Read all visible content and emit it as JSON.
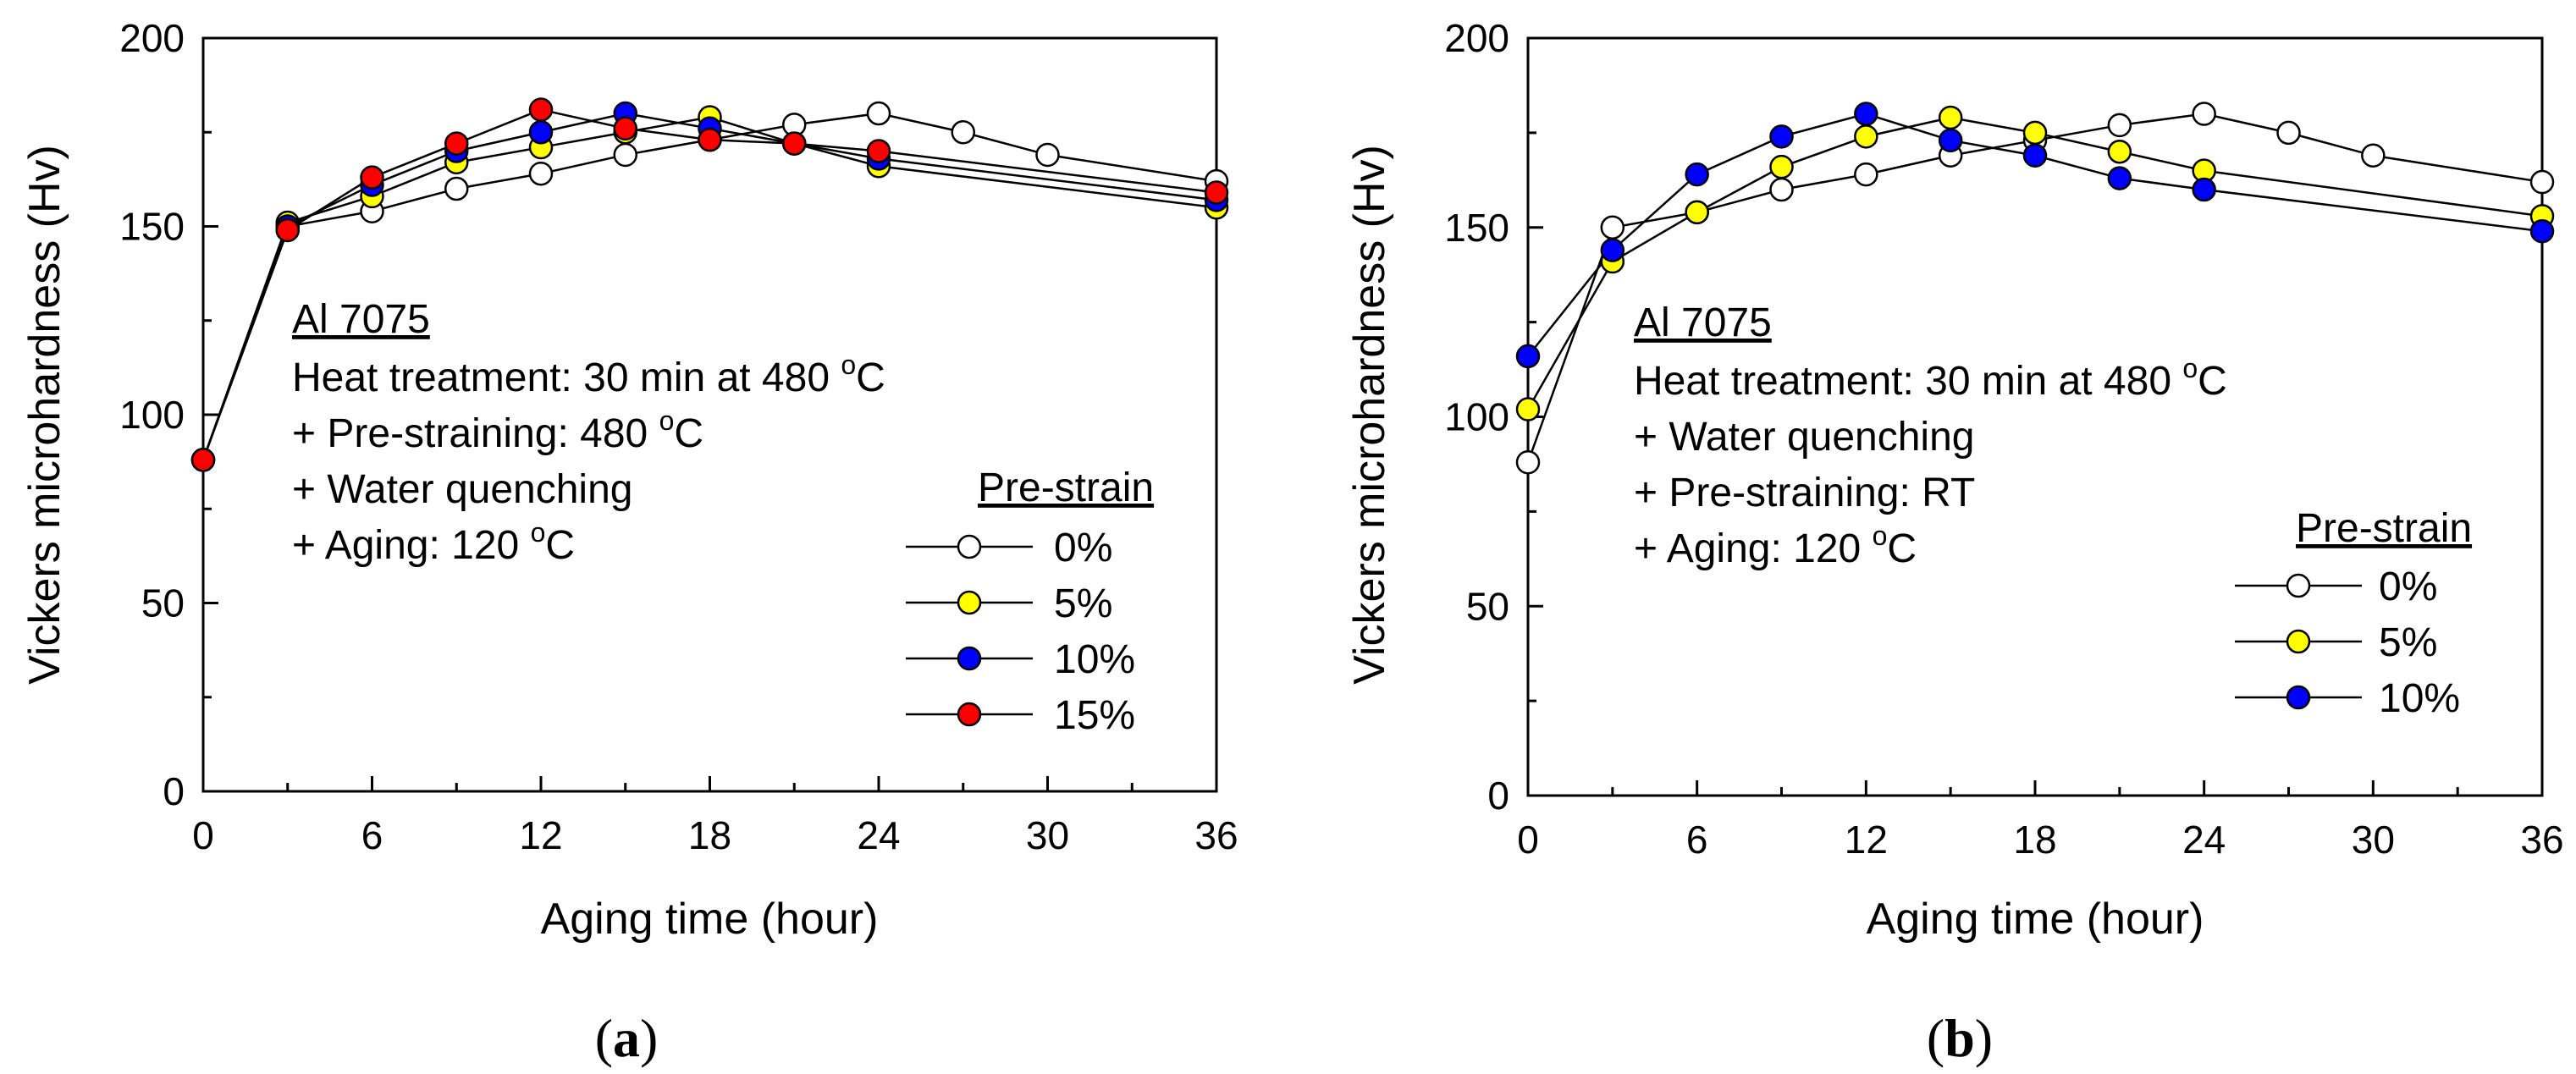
{
  "panels": [
    {
      "label": "(a)",
      "letter": "a",
      "annotation": {
        "title": "Al 7075",
        "lines": [
          {
            "main": "Heat treatment: 30 min at 480 ",
            "sup": "o",
            "tail": "C"
          },
          {
            "main": "+ Pre-straining: 480 ",
            "sup": "o",
            "tail": "C"
          },
          {
            "main": "+ Water quenching",
            "sup": "",
            "tail": ""
          },
          {
            "main": "+ Aging: 120 ",
            "sup": "o",
            "tail": "C"
          }
        ]
      },
      "legend_title": "Pre-strain"
    },
    {
      "label": "(b)",
      "letter": "b",
      "annotation": {
        "title": "Al 7075",
        "lines": [
          {
            "main": "Heat treatment: 30 min at 480 ",
            "sup": "o",
            "tail": "C"
          },
          {
            "main": "+ Water quenching",
            "sup": "",
            "tail": ""
          },
          {
            "main": "+ Pre-straining: RT",
            "sup": "",
            "tail": ""
          },
          {
            "main": "+ Aging: 120 ",
            "sup": "o",
            "tail": "C"
          }
        ]
      },
      "legend_title": "Pre-strain"
    }
  ],
  "chart_data": [
    {
      "type": "line",
      "title": "",
      "xlabel": "Aging time (hour)",
      "ylabel": "Vickers microhardness (Hv)",
      "xlim": [
        0,
        36
      ],
      "ylim": [
        0,
        200
      ],
      "xticks": [
        0,
        6,
        12,
        18,
        24,
        30,
        36
      ],
      "yticks": [
        0,
        50,
        100,
        150,
        200
      ],
      "legend_title": "Pre-strain",
      "series": [
        {
          "name": "0%",
          "color": "#ffffff",
          "x": [
            0,
            3,
            6,
            9,
            12,
            15,
            18,
            21,
            24,
            27,
            30,
            36
          ],
          "values": [
            88,
            150,
            154,
            160,
            164,
            169,
            173,
            177,
            180,
            175,
            169,
            162
          ]
        },
        {
          "name": "5%",
          "color": "#ffff00",
          "x": [
            0,
            3,
            6,
            9,
            12,
            15,
            18,
            21,
            24,
            36
          ],
          "values": [
            88,
            151,
            158,
            167,
            171,
            175,
            179,
            172,
            166,
            155
          ]
        },
        {
          "name": "10%",
          "color": "#0000ff",
          "x": [
            0,
            3,
            6,
            9,
            12,
            15,
            18,
            21,
            24,
            36
          ],
          "values": [
            88,
            150,
            161,
            170,
            175,
            180,
            176,
            172,
            168,
            157
          ]
        },
        {
          "name": "15%",
          "color": "#ff0000",
          "x": [
            0,
            3,
            6,
            9,
            12,
            15,
            18,
            21,
            24,
            36
          ],
          "values": [
            88,
            149,
            163,
            172,
            181,
            176,
            173,
            172,
            170,
            159
          ]
        }
      ]
    },
    {
      "type": "line",
      "title": "",
      "xlabel": "Aging time (hour)",
      "ylabel": "Vickers microhardness (Hv)",
      "xlim": [
        0,
        36
      ],
      "ylim": [
        0,
        200
      ],
      "xticks": [
        0,
        6,
        12,
        18,
        24,
        30,
        36
      ],
      "yticks": [
        0,
        50,
        100,
        150,
        200
      ],
      "legend_title": "Pre-strain",
      "series": [
        {
          "name": "0%",
          "color": "#ffffff",
          "x": [
            0,
            3,
            6,
            9,
            12,
            15,
            18,
            21,
            24,
            27,
            30,
            36
          ],
          "values": [
            88,
            150,
            154,
            160,
            164,
            169,
            173,
            177,
            180,
            175,
            169,
            162
          ]
        },
        {
          "name": "5%",
          "color": "#ffff00",
          "x": [
            0,
            3,
            6,
            9,
            12,
            15,
            18,
            21,
            24,
            36
          ],
          "values": [
            102,
            141,
            154,
            166,
            174,
            179,
            175,
            170,
            165,
            153
          ]
        },
        {
          "name": "10%",
          "color": "#0000ff",
          "x": [
            0,
            3,
            6,
            9,
            12,
            15,
            18,
            21,
            24,
            36
          ],
          "values": [
            116,
            144,
            164,
            174,
            180,
            173,
            169,
            163,
            160,
            149
          ]
        }
      ]
    }
  ]
}
